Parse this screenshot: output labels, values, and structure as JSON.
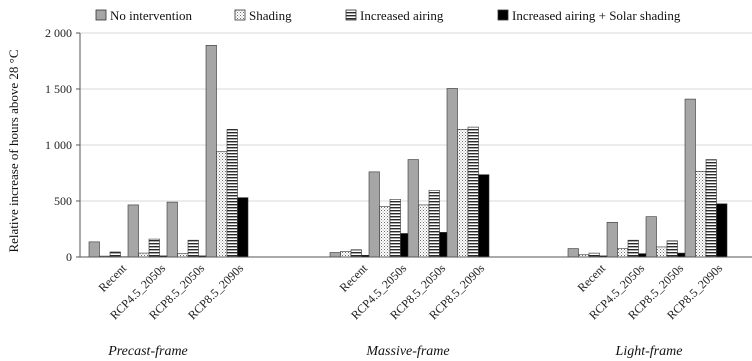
{
  "chart_data": {
    "type": "bar",
    "ylabel": "Relative increase of hours above 28 °C",
    "ylim": [
      0,
      2000
    ],
    "yticks": [
      0,
      500,
      1000,
      1500,
      2000
    ],
    "ytick_labels": [
      "0",
      "500",
      "1 000",
      "1 500",
      "2 000"
    ],
    "legend_placement": "top",
    "groups": [
      {
        "name": "Precast-frame",
        "categories": [
          "Recent",
          "RCP4.5_2050s",
          "RCP8.5_2050s",
          "RCP8.5_2090s"
        ],
        "series_values": {
          "No intervention": [
            135,
            465,
            490,
            1890
          ],
          "Shading": [
            8,
            35,
            30,
            940
          ],
          "Increased airing": [
            45,
            160,
            150,
            1140
          ],
          "Increased airing + Solar shading": [
            3,
            10,
            10,
            530
          ]
        }
      },
      {
        "name": "Massive-frame",
        "categories": [
          "Recent",
          "RCP4.5_2050s",
          "RCP8.5_2050s",
          "RCP8.5_2090s"
        ],
        "series_values": {
          "No intervention": [
            40,
            760,
            870,
            1505
          ],
          "Shading": [
            50,
            450,
            465,
            1140
          ],
          "Increased airing": [
            65,
            515,
            595,
            1160
          ],
          "Increased airing + Solar shading": [
            15,
            210,
            220,
            735
          ]
        }
      },
      {
        "name": "Light-frame",
        "categories": [
          "Recent",
          "RCP4.5_2050s",
          "RCP8.5_2050s",
          "RCP8.5_2090s"
        ],
        "series_values": {
          "No intervention": [
            75,
            310,
            360,
            1410
          ],
          "Shading": [
            20,
            75,
            90,
            765
          ],
          "Increased airing": [
            35,
            150,
            145,
            870
          ],
          "Increased airing + Solar shading": [
            10,
            30,
            35,
            475
          ]
        }
      }
    ],
    "series": [
      {
        "name": "No intervention",
        "pattern": "gray",
        "color": "#a6a6a6"
      },
      {
        "name": "Shading",
        "pattern": "dots",
        "color": "#ffffff"
      },
      {
        "name": "Increased airing",
        "pattern": "hlines",
        "color": "#ffffff"
      },
      {
        "name": "Increased airing + Solar shading",
        "pattern": "black",
        "color": "#000000"
      }
    ]
  }
}
